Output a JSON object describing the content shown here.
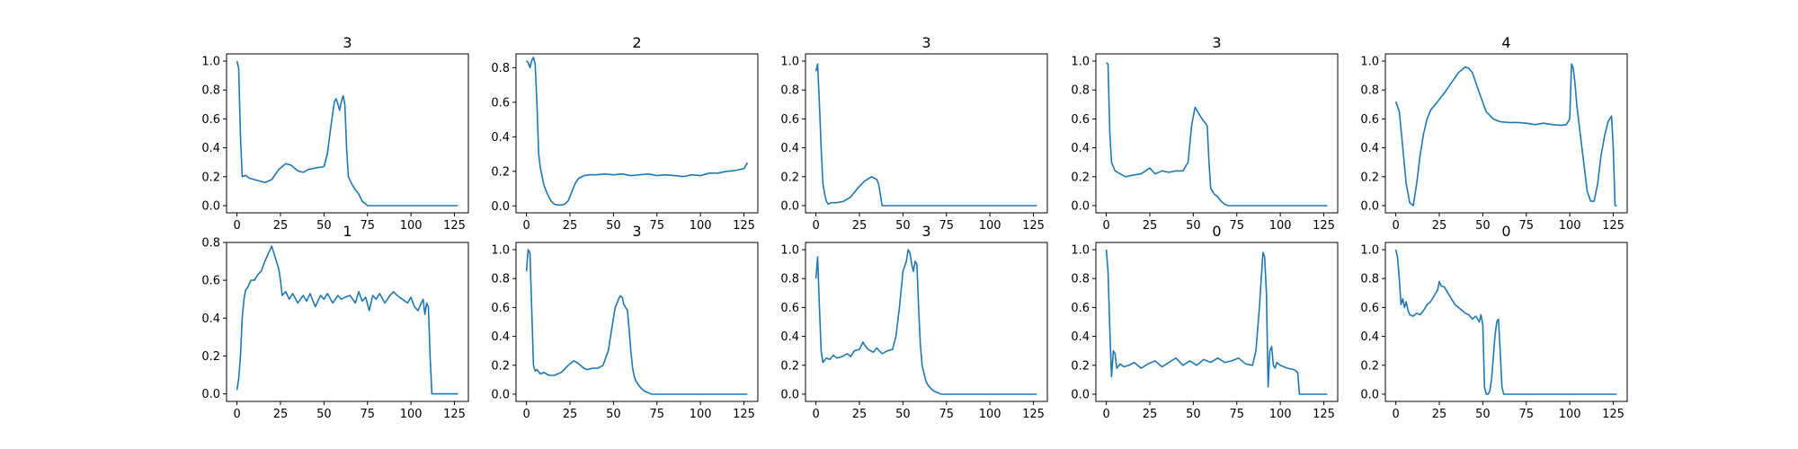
{
  "figure": {
    "colors": {
      "line": "#1f77b4",
      "axis": "#000000",
      "background": "#ffffff"
    }
  },
  "chart_data": [
    {
      "type": "line",
      "title": "3",
      "xlim": [
        -6,
        133
      ],
      "ylim": [
        -0.05,
        1.05
      ],
      "xticks": [
        0,
        25,
        50,
        75,
        100,
        125
      ],
      "yticks": [
        0.0,
        0.2,
        0.4,
        0.6,
        0.8,
        1.0
      ],
      "x": [
        0,
        1,
        2,
        3,
        5,
        7,
        10,
        13,
        16,
        20,
        24,
        28,
        31,
        35,
        38,
        41,
        45,
        50,
        52,
        54,
        56,
        57,
        58,
        59,
        60,
        61,
        62,
        63,
        64,
        66,
        68,
        70,
        72,
        74,
        75,
        78,
        90,
        110,
        127
      ],
      "y": [
        1.0,
        0.95,
        0.48,
        0.2,
        0.21,
        0.19,
        0.18,
        0.17,
        0.16,
        0.18,
        0.25,
        0.29,
        0.28,
        0.24,
        0.23,
        0.25,
        0.26,
        0.27,
        0.36,
        0.55,
        0.72,
        0.74,
        0.7,
        0.66,
        0.72,
        0.76,
        0.7,
        0.4,
        0.2,
        0.15,
        0.11,
        0.08,
        0.03,
        0.01,
        0.0,
        0.0,
        0.0,
        0.0,
        0.0
      ]
    },
    {
      "type": "line",
      "title": "2",
      "xlim": [
        -6,
        133
      ],
      "ylim": [
        -0.04,
        0.88
      ],
      "xticks": [
        0,
        25,
        50,
        75,
        100,
        125
      ],
      "yticks": [
        0.0,
        0.2,
        0.4,
        0.6,
        0.8
      ],
      "x": [
        0,
        1,
        2,
        3,
        4,
        5,
        6,
        7,
        8,
        10,
        12,
        14,
        16,
        18,
        20,
        22,
        24,
        26,
        28,
        30,
        33,
        36,
        40,
        45,
        50,
        55,
        60,
        65,
        70,
        75,
        80,
        85,
        90,
        95,
        100,
        105,
        110,
        115,
        120,
        125,
        127
      ],
      "y": [
        0.84,
        0.83,
        0.8,
        0.84,
        0.86,
        0.82,
        0.6,
        0.3,
        0.22,
        0.12,
        0.07,
        0.03,
        0.01,
        0.005,
        0.005,
        0.01,
        0.03,
        0.08,
        0.13,
        0.16,
        0.175,
        0.18,
        0.18,
        0.185,
        0.18,
        0.185,
        0.175,
        0.18,
        0.185,
        0.175,
        0.18,
        0.175,
        0.17,
        0.18,
        0.175,
        0.19,
        0.19,
        0.2,
        0.205,
        0.215,
        0.25
      ]
    },
    {
      "type": "line",
      "title": "3",
      "xlim": [
        -6,
        133
      ],
      "ylim": [
        -0.05,
        1.05
      ],
      "xticks": [
        0,
        25,
        50,
        75,
        100,
        125
      ],
      "yticks": [
        0.0,
        0.2,
        0.4,
        0.6,
        0.8,
        1.0
      ],
      "x": [
        0,
        1,
        2,
        3,
        4,
        5,
        6,
        7,
        9,
        12,
        16,
        20,
        24,
        28,
        32,
        35,
        36,
        37,
        38,
        40,
        60,
        80,
        100,
        127
      ],
      "y": [
        0.93,
        0.98,
        0.7,
        0.4,
        0.15,
        0.08,
        0.03,
        0.01,
        0.02,
        0.02,
        0.03,
        0.06,
        0.12,
        0.17,
        0.2,
        0.18,
        0.15,
        0.08,
        0.0,
        0.0,
        0.0,
        0.0,
        0.0,
        0.0
      ]
    },
    {
      "type": "line",
      "title": "3",
      "xlim": [
        -6,
        133
      ],
      "ylim": [
        -0.05,
        1.05
      ],
      "xticks": [
        0,
        25,
        50,
        75,
        100,
        125
      ],
      "yticks": [
        0.0,
        0.2,
        0.4,
        0.6,
        0.8,
        1.0
      ],
      "x": [
        0,
        1,
        2,
        3,
        5,
        8,
        11,
        15,
        20,
        25,
        28,
        32,
        36,
        40,
        44,
        47,
        49,
        51,
        53,
        55,
        57,
        58,
        59,
        60,
        61,
        62,
        64,
        66,
        68,
        70,
        75,
        90,
        110,
        127
      ],
      "y": [
        0.99,
        0.98,
        0.5,
        0.3,
        0.24,
        0.22,
        0.2,
        0.21,
        0.22,
        0.26,
        0.22,
        0.24,
        0.23,
        0.24,
        0.24,
        0.3,
        0.55,
        0.68,
        0.64,
        0.6,
        0.57,
        0.55,
        0.3,
        0.12,
        0.1,
        0.08,
        0.06,
        0.03,
        0.01,
        0.0,
        0.0,
        0.0,
        0.0,
        0.0
      ]
    },
    {
      "type": "line",
      "title": "4",
      "xlim": [
        -6,
        133
      ],
      "ylim": [
        -0.05,
        1.05
      ],
      "xticks": [
        0,
        25,
        50,
        75,
        100,
        125
      ],
      "yticks": [
        0.0,
        0.2,
        0.4,
        0.6,
        0.8,
        1.0
      ],
      "x": [
        0,
        2,
        4,
        6,
        8,
        10,
        12,
        14,
        16,
        18,
        20,
        24,
        28,
        32,
        36,
        40,
        42,
        44,
        48,
        52,
        56,
        60,
        65,
        70,
        75,
        80,
        85,
        90,
        95,
        98,
        100,
        101,
        102,
        103,
        104,
        106,
        108,
        110,
        112,
        114,
        116,
        118,
        120,
        122,
        124,
        125,
        126,
        127
      ],
      "y": [
        0.72,
        0.65,
        0.4,
        0.15,
        0.02,
        0.0,
        0.15,
        0.35,
        0.5,
        0.6,
        0.66,
        0.72,
        0.78,
        0.85,
        0.92,
        0.96,
        0.95,
        0.92,
        0.78,
        0.65,
        0.6,
        0.58,
        0.575,
        0.575,
        0.57,
        0.56,
        0.57,
        0.56,
        0.555,
        0.56,
        0.6,
        0.98,
        0.95,
        0.85,
        0.7,
        0.5,
        0.3,
        0.1,
        0.03,
        0.03,
        0.15,
        0.35,
        0.48,
        0.58,
        0.62,
        0.4,
        0.0,
        0.0
      ]
    },
    {
      "type": "line",
      "title": "1",
      "xlim": [
        -6,
        133
      ],
      "ylim": [
        -0.04,
        0.8
      ],
      "xticks": [
        0,
        25,
        50,
        75,
        100,
        125
      ],
      "yticks": [
        0.0,
        0.2,
        0.4,
        0.6,
        0.8
      ],
      "x": [
        0,
        1,
        2,
        3,
        4,
        5,
        6,
        7,
        8,
        10,
        12,
        14,
        16,
        18,
        20,
        22,
        24,
        25,
        26,
        28,
        30,
        32,
        35,
        38,
        40,
        42,
        45,
        48,
        50,
        52,
        55,
        58,
        60,
        62,
        65,
        68,
        70,
        72,
        74,
        76,
        78,
        80,
        82,
        85,
        88,
        90,
        92,
        95,
        98,
        100,
        102,
        104,
        106,
        107,
        108,
        109,
        110,
        111,
        112,
        120,
        127
      ],
      "y": [
        0.02,
        0.08,
        0.2,
        0.4,
        0.5,
        0.55,
        0.56,
        0.58,
        0.6,
        0.6,
        0.63,
        0.65,
        0.7,
        0.74,
        0.78,
        0.72,
        0.66,
        0.6,
        0.52,
        0.54,
        0.5,
        0.53,
        0.48,
        0.52,
        0.49,
        0.53,
        0.46,
        0.52,
        0.5,
        0.53,
        0.48,
        0.52,
        0.5,
        0.51,
        0.52,
        0.48,
        0.54,
        0.49,
        0.51,
        0.44,
        0.52,
        0.5,
        0.53,
        0.48,
        0.52,
        0.54,
        0.52,
        0.5,
        0.48,
        0.51,
        0.46,
        0.44,
        0.48,
        0.5,
        0.42,
        0.48,
        0.46,
        0.2,
        0.0,
        0.0,
        0.0
      ]
    },
    {
      "type": "line",
      "title": "3",
      "xlim": [
        -6,
        133
      ],
      "ylim": [
        -0.05,
        1.05
      ],
      "xticks": [
        0,
        25,
        50,
        75,
        100,
        125
      ],
      "yticks": [
        0.0,
        0.2,
        0.4,
        0.6,
        0.8,
        1.0
      ],
      "x": [
        0,
        1,
        2,
        3,
        4,
        5,
        6,
        8,
        10,
        13,
        16,
        20,
        24,
        27,
        29,
        31,
        33,
        35,
        38,
        41,
        44,
        47,
        49,
        51,
        53,
        54,
        55,
        56,
        57,
        58,
        59,
        60,
        61,
        62,
        63,
        64,
        66,
        68,
        70,
        72,
        75,
        80,
        90,
        110,
        127
      ],
      "y": [
        0.85,
        1.0,
        0.98,
        0.6,
        0.2,
        0.16,
        0.17,
        0.14,
        0.15,
        0.13,
        0.13,
        0.15,
        0.2,
        0.23,
        0.22,
        0.2,
        0.18,
        0.17,
        0.18,
        0.18,
        0.2,
        0.3,
        0.45,
        0.6,
        0.66,
        0.68,
        0.67,
        0.62,
        0.6,
        0.58,
        0.45,
        0.3,
        0.18,
        0.12,
        0.09,
        0.07,
        0.04,
        0.02,
        0.01,
        0.0,
        0.0,
        0.0,
        0.0,
        0.0,
        0.0
      ]
    },
    {
      "type": "line",
      "title": "3",
      "xlim": [
        -6,
        133
      ],
      "ylim": [
        -0.05,
        1.05
      ],
      "xticks": [
        0,
        25,
        50,
        75,
        100,
        125
      ],
      "yticks": [
        0.0,
        0.2,
        0.4,
        0.6,
        0.8,
        1.0
      ],
      "x": [
        0,
        1,
        2,
        3,
        4,
        6,
        8,
        10,
        12,
        15,
        18,
        20,
        22,
        25,
        27,
        28,
        30,
        33,
        35,
        38,
        41,
        44,
        46,
        48,
        50,
        52,
        53,
        54,
        55,
        56,
        57,
        58,
        59,
        60,
        61,
        62,
        63,
        64,
        66,
        68,
        70,
        72,
        75,
        80,
        90,
        110,
        127
      ],
      "y": [
        0.8,
        0.95,
        0.6,
        0.3,
        0.22,
        0.25,
        0.24,
        0.27,
        0.25,
        0.26,
        0.28,
        0.26,
        0.3,
        0.31,
        0.36,
        0.34,
        0.31,
        0.29,
        0.32,
        0.28,
        0.3,
        0.31,
        0.4,
        0.6,
        0.85,
        0.92,
        1.0,
        0.98,
        0.9,
        0.85,
        0.92,
        0.9,
        0.6,
        0.35,
        0.2,
        0.15,
        0.1,
        0.07,
        0.04,
        0.02,
        0.01,
        0.0,
        0.0,
        0.0,
        0.0,
        0.0,
        0.0
      ]
    },
    {
      "type": "line",
      "title": "0",
      "xlim": [
        -6,
        133
      ],
      "ylim": [
        -0.05,
        1.05
      ],
      "xticks": [
        0,
        25,
        50,
        75,
        100,
        125
      ],
      "yticks": [
        0.0,
        0.2,
        0.4,
        0.6,
        0.8,
        1.0
      ],
      "x": [
        0,
        1,
        2,
        3,
        4,
        5,
        6,
        8,
        10,
        13,
        16,
        20,
        24,
        28,
        32,
        36,
        40,
        44,
        48,
        52,
        56,
        60,
        64,
        68,
        72,
        76,
        80,
        84,
        86,
        88,
        90,
        91,
        92,
        93,
        94,
        95,
        96,
        97,
        98,
        100,
        104,
        108,
        110,
        111,
        115,
        120,
        127
      ],
      "y": [
        1.0,
        0.85,
        0.45,
        0.12,
        0.3,
        0.28,
        0.18,
        0.21,
        0.19,
        0.2,
        0.22,
        0.18,
        0.21,
        0.23,
        0.19,
        0.22,
        0.25,
        0.2,
        0.23,
        0.2,
        0.24,
        0.22,
        0.25,
        0.22,
        0.23,
        0.25,
        0.21,
        0.2,
        0.3,
        0.6,
        0.98,
        0.95,
        0.7,
        0.05,
        0.3,
        0.33,
        0.2,
        0.18,
        0.22,
        0.2,
        0.18,
        0.17,
        0.15,
        0.0,
        0.0,
        0.0,
        0.0
      ]
    },
    {
      "type": "line",
      "title": "0",
      "xlim": [
        -6,
        133
      ],
      "ylim": [
        -0.05,
        1.05
      ],
      "xticks": [
        0,
        25,
        50,
        75,
        100,
        125
      ],
      "yticks": [
        0.0,
        0.2,
        0.4,
        0.6,
        0.8,
        1.0
      ],
      "x": [
        0,
        1,
        2,
        3,
        4,
        5,
        6,
        7,
        8,
        10,
        12,
        14,
        16,
        18,
        20,
        22,
        24,
        25,
        26,
        28,
        30,
        32,
        34,
        36,
        38,
        40,
        42,
        44,
        46,
        48,
        49,
        50,
        51,
        52,
        53,
        54,
        55,
        56,
        57,
        58,
        59,
        60,
        61,
        62,
        64,
        70,
        80,
        100,
        120,
        127
      ],
      "y": [
        1.0,
        0.95,
        0.8,
        0.62,
        0.66,
        0.6,
        0.64,
        0.58,
        0.55,
        0.54,
        0.56,
        0.55,
        0.58,
        0.62,
        0.64,
        0.68,
        0.72,
        0.78,
        0.75,
        0.74,
        0.7,
        0.66,
        0.62,
        0.6,
        0.58,
        0.56,
        0.55,
        0.52,
        0.54,
        0.5,
        0.55,
        0.48,
        0.05,
        0.0,
        0.0,
        0.02,
        0.1,
        0.25,
        0.4,
        0.5,
        0.52,
        0.3,
        0.05,
        0.0,
        0.0,
        0.0,
        0.0,
        0.0,
        0.0,
        0.0
      ]
    }
  ]
}
